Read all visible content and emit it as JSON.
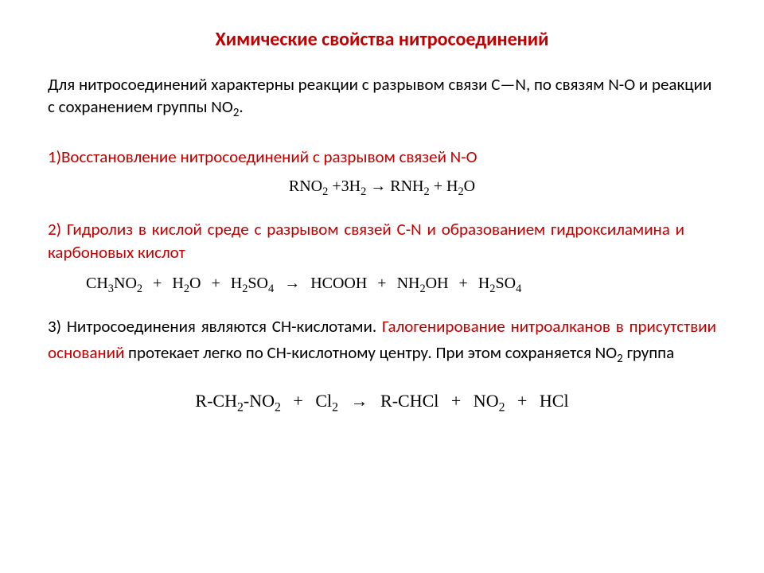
{
  "colors": {
    "title": "#c00000",
    "body": "#000000",
    "heading": "#c00000",
    "equation": "#000000"
  },
  "typography": {
    "title_fontsize": 24,
    "body_fontsize": 21,
    "equation_fontsize": 20,
    "equation_font": "Times New Roman",
    "body_font": "Calibri"
  },
  "title": "Химические свойства нитросоединений",
  "intro": {
    "part1": "Для нитросоединений характерны реакции с разрывом связи С—N, по связям N-O и реакции с сохранением группы NO",
    "sub1": "2",
    "part2": "."
  },
  "section1": {
    "heading": "1)Восстановление нитросоединений с разрывом связей N-O",
    "equation": {
      "p1": "RNO",
      "s1": "2",
      "p2": " +3H",
      "s2": "2",
      "p3": " → RNH",
      "s3": "2",
      "p4": " + H",
      "s4": "2",
      "p5": "O"
    }
  },
  "section2": {
    "heading": "2) Гидролиз в кислой среде с разрывом связей С-N и образованием гидроксиламина и  карбоновых кислот",
    "equation": {
      "p1": "CH",
      "s1": "3",
      "p2": "NO",
      "s2": "2",
      "p3": " + H",
      "s3": "2",
      "p4": "O + H",
      "s4": "2",
      "p5": "SO",
      "s5": "4",
      "p6": " → HCOOH + NH",
      "s6": "2",
      "p7": "OH + H",
      "s7": "2",
      "p8": "SO",
      "s8": "4"
    }
  },
  "section3": {
    "black1": "3) Нитросоединения являются СН-кислотами. ",
    "red1": "Галогенирование нитроалканов в присутствии оснований",
    "black2": " протекает легко по СН-кислотному центру. При этом сохраняется NO",
    "sub1": "2",
    "black3": " группа",
    "equation": {
      "p1": "R-CH",
      "s1": "2",
      "p2": "-NO",
      "s2": "2",
      "p3": " + Cl",
      "s3": "2",
      "p4": " → R-CHCl + NO",
      "s4": "2",
      "p5": " + HCl"
    }
  }
}
